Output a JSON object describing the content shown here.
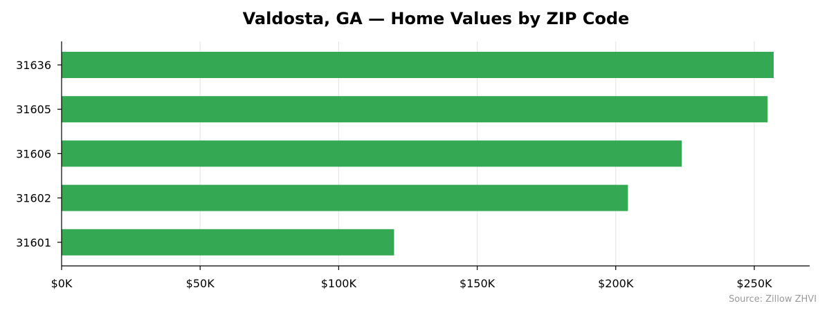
{
  "chart_data": {
    "type": "bar",
    "orientation": "horizontal",
    "title": "Valdosta, GA — Home Values by ZIP Code",
    "xlabel": "",
    "ylabel": "",
    "categories": [
      "31636",
      "31605",
      "31606",
      "31602",
      "31601"
    ],
    "values": [
      257000,
      254800,
      223800,
      204400,
      120000
    ],
    "xlim": [
      0,
      270000
    ],
    "x_ticks": [
      0,
      50000,
      100000,
      150000,
      200000,
      250000
    ],
    "x_tick_labels": [
      "$0K",
      "$50K",
      "$100K",
      "$150K",
      "$200K",
      "$250K"
    ],
    "bar_color": "#34a853",
    "grid": "vertical",
    "source": "Source: Zillow ZHVI"
  }
}
